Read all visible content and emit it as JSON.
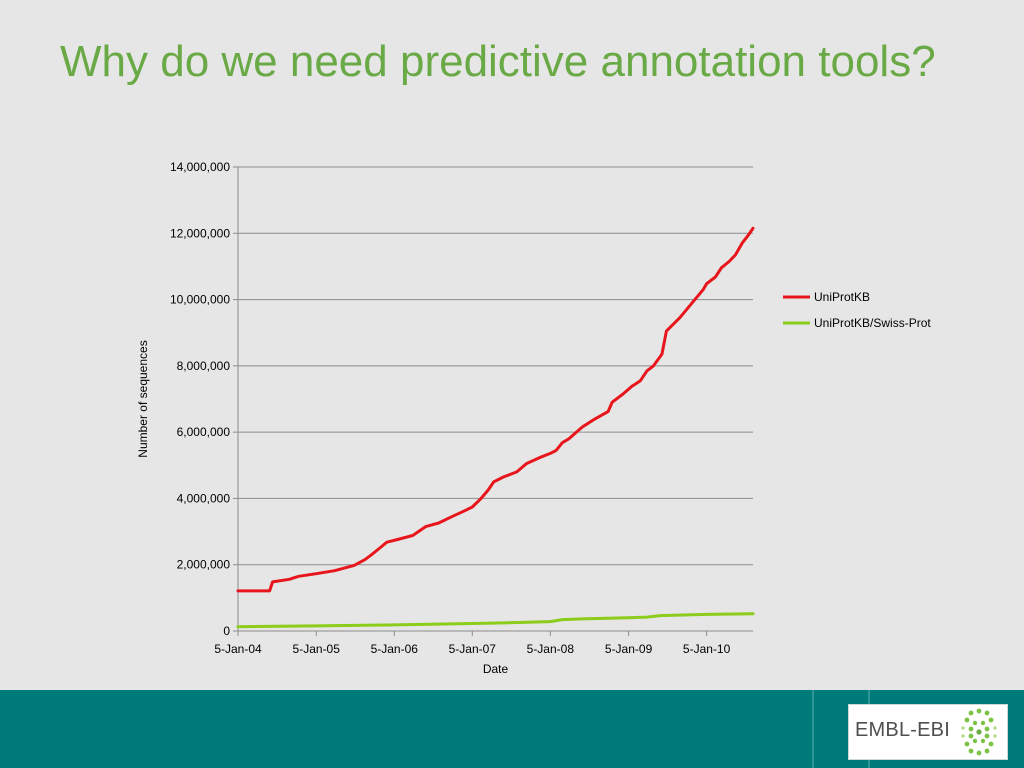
{
  "slide": {
    "title": "Why do we need predictive annotation tools?"
  },
  "logo": {
    "text": "EMBL-EBI",
    "emblem_icon": "dna-helix-dots-icon"
  },
  "colors": {
    "title": "#6aaa46",
    "footer": "#007b7b",
    "uniprotkb": "#e8161c",
    "swissprot": "#8ccc1a"
  },
  "chart_data": {
    "type": "line",
    "title": "",
    "xlabel": "Date",
    "ylabel": "Number of sequences",
    "x_axis_type": "date",
    "xlim": [
      "2004-01-05",
      "2010-08-10"
    ],
    "ylim": [
      0,
      14000000
    ],
    "y_ticks": [
      0,
      2000000,
      4000000,
      6000000,
      8000000,
      10000000,
      12000000,
      14000000
    ],
    "y_tick_labels": [
      "0",
      "2,000,000",
      "4,000,000",
      "6,000,000",
      "8,000,000",
      "10,000,000",
      "12,000,000",
      "14,000,000"
    ],
    "x_ticks": [
      "2004-01-05",
      "2005-01-05",
      "2006-01-05",
      "2007-01-05",
      "2008-01-05",
      "2009-01-05",
      "2010-01-05"
    ],
    "x_tick_labels": [
      "5-Jan-04",
      "5-Jan-05",
      "5-Jan-06",
      "5-Jan-07",
      "5-Jan-08",
      "5-Jan-09",
      "5-Jan-10"
    ],
    "grid": "horizontal",
    "legend_position": "right",
    "series": [
      {
        "name": "UniProtKB",
        "color": "#e8161c",
        "points": [
          [
            "2004-01-05",
            1210000
          ],
          [
            "2004-06-01",
            1210000
          ],
          [
            "2004-06-15",
            1480000
          ],
          [
            "2004-09-01",
            1560000
          ],
          [
            "2004-10-15",
            1650000
          ],
          [
            "2005-01-05",
            1730000
          ],
          [
            "2005-04-01",
            1820000
          ],
          [
            "2005-07-01",
            1980000
          ],
          [
            "2005-08-20",
            2150000
          ],
          [
            "2005-09-20",
            2300000
          ],
          [
            "2005-11-01",
            2520000
          ],
          [
            "2005-12-01",
            2680000
          ],
          [
            "2006-01-20",
            2760000
          ],
          [
            "2006-04-01",
            2880000
          ],
          [
            "2006-06-01",
            3150000
          ],
          [
            "2006-08-01",
            3260000
          ],
          [
            "2006-10-01",
            3450000
          ],
          [
            "2006-12-01",
            3630000
          ],
          [
            "2007-01-05",
            3740000
          ],
          [
            "2007-02-15",
            4000000
          ],
          [
            "2007-03-20",
            4250000
          ],
          [
            "2007-04-15",
            4500000
          ],
          [
            "2007-06-01",
            4650000
          ],
          [
            "2007-08-01",
            4800000
          ],
          [
            "2007-09-15",
            5050000
          ],
          [
            "2007-11-15",
            5230000
          ],
          [
            "2008-01-05",
            5360000
          ],
          [
            "2008-02-01",
            5450000
          ],
          [
            "2008-03-01",
            5680000
          ],
          [
            "2008-04-01",
            5800000
          ],
          [
            "2008-06-01",
            6150000
          ],
          [
            "2008-08-01",
            6400000
          ],
          [
            "2008-10-01",
            6620000
          ],
          [
            "2008-10-20",
            6900000
          ],
          [
            "2008-12-10",
            7150000
          ],
          [
            "2009-01-20",
            7380000
          ],
          [
            "2009-03-01",
            7550000
          ],
          [
            "2009-04-01",
            7850000
          ],
          [
            "2009-05-01",
            8000000
          ],
          [
            "2009-06-10",
            8350000
          ],
          [
            "2009-07-01",
            9050000
          ],
          [
            "2009-09-01",
            9450000
          ],
          [
            "2009-11-01",
            9920000
          ],
          [
            "2009-12-20",
            10300000
          ],
          [
            "2010-01-05",
            10480000
          ],
          [
            "2010-02-15",
            10680000
          ],
          [
            "2010-03-15",
            10960000
          ],
          [
            "2010-04-20",
            11150000
          ],
          [
            "2010-05-20",
            11350000
          ],
          [
            "2010-06-20",
            11700000
          ],
          [
            "2010-07-20",
            11950000
          ],
          [
            "2010-08-10",
            12150000
          ]
        ]
      },
      {
        "name": "UniProtKB/Swiss-Prot",
        "color": "#8ccc1a",
        "points": [
          [
            "2004-01-05",
            130000
          ],
          [
            "2005-01-05",
            155000
          ],
          [
            "2006-01-05",
            185000
          ],
          [
            "2007-01-05",
            225000
          ],
          [
            "2007-06-01",
            245000
          ],
          [
            "2008-01-05",
            285000
          ],
          [
            "2008-03-01",
            345000
          ],
          [
            "2008-06-01",
            365000
          ],
          [
            "2009-01-05",
            400000
          ],
          [
            "2009-04-01",
            420000
          ],
          [
            "2009-06-01",
            465000
          ],
          [
            "2010-01-05",
            500000
          ],
          [
            "2010-08-10",
            520000
          ]
        ]
      }
    ]
  }
}
